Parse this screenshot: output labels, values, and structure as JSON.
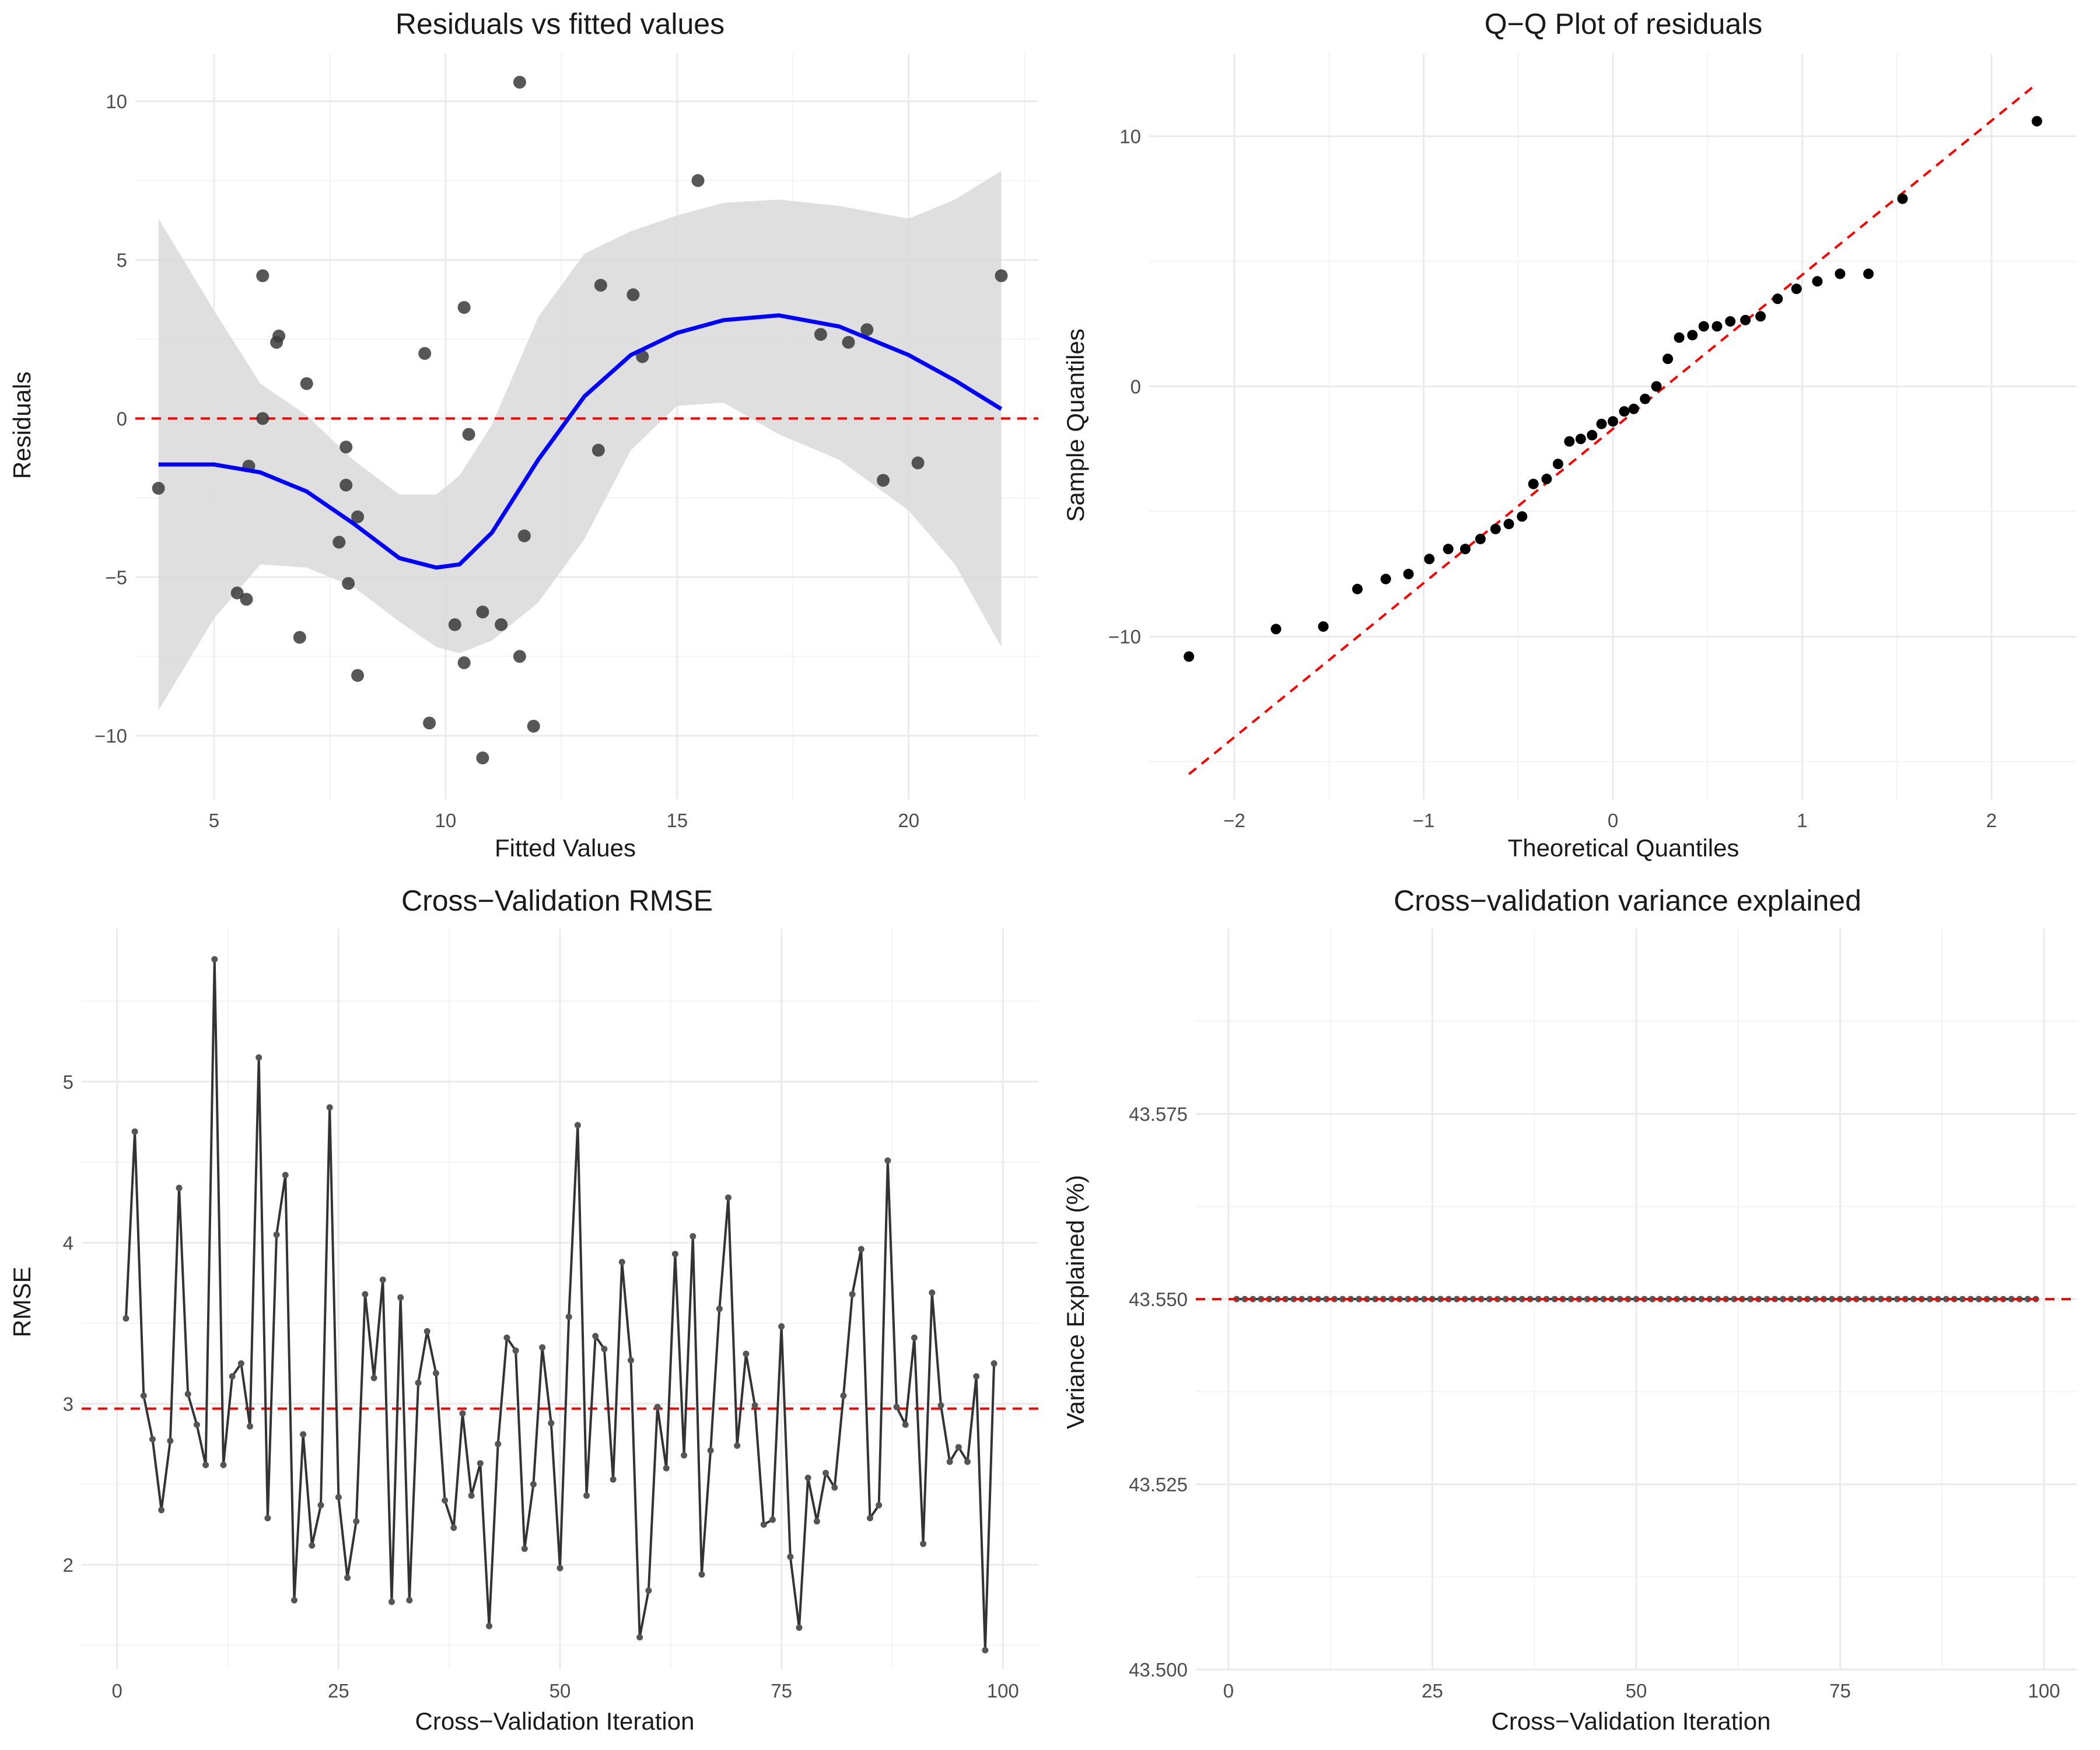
{
  "chart_data": [
    {
      "id": "residuals",
      "type": "scatter",
      "title": "Residuals vs fitted values",
      "xlabel": "Fitted Values",
      "ylabel": "Residuals",
      "xlim": [
        3.3,
        22.8
      ],
      "ylim": [
        -12,
        11.5
      ],
      "xticks": [
        5,
        10,
        15,
        20
      ],
      "yticks": [
        -10,
        -5,
        0,
        5,
        10
      ],
      "xtick_labels": [
        "5",
        "10",
        "15",
        "20"
      ],
      "ytick_labels": [
        "−10",
        "−5",
        "0",
        "5",
        "10"
      ],
      "grid": true,
      "reference_line": {
        "y": 0,
        "color": "#ff0000",
        "style": "dashed"
      },
      "smooth_color": "#0000ff",
      "band_color": "#d9d9d9",
      "point_color": "#3a3a3a",
      "points": [
        {
          "x": 3.8,
          "y": -2.2
        },
        {
          "x": 5.5,
          "y": -5.5
        },
        {
          "x": 5.7,
          "y": -5.7
        },
        {
          "x": 5.75,
          "y": -1.5
        },
        {
          "x": 6.05,
          "y": 4.5
        },
        {
          "x": 6.05,
          "y": 0.0
        },
        {
          "x": 6.35,
          "y": 2.4
        },
        {
          "x": 6.4,
          "y": 2.6
        },
        {
          "x": 6.85,
          "y": -6.9
        },
        {
          "x": 7.0,
          "y": 1.1
        },
        {
          "x": 7.7,
          "y": -3.9
        },
        {
          "x": 7.85,
          "y": -0.9
        },
        {
          "x": 7.85,
          "y": -2.1
        },
        {
          "x": 7.9,
          "y": -5.2
        },
        {
          "x": 8.1,
          "y": -3.1
        },
        {
          "x": 8.1,
          "y": -8.1
        },
        {
          "x": 9.55,
          "y": 2.05
        },
        {
          "x": 9.65,
          "y": -9.6
        },
        {
          "x": 10.2,
          "y": -6.5
        },
        {
          "x": 10.4,
          "y": 3.5
        },
        {
          "x": 10.4,
          "y": -7.7
        },
        {
          "x": 10.5,
          "y": -0.5
        },
        {
          "x": 10.8,
          "y": -6.1
        },
        {
          "x": 10.8,
          "y": -10.7
        },
        {
          "x": 11.2,
          "y": -6.5
        },
        {
          "x": 11.6,
          "y": -7.5
        },
        {
          "x": 11.6,
          "y": 10.6
        },
        {
          "x": 11.7,
          "y": -3.7
        },
        {
          "x": 11.9,
          "y": -9.7
        },
        {
          "x": 13.3,
          "y": -1.0
        },
        {
          "x": 13.35,
          "y": 4.2
        },
        {
          "x": 14.05,
          "y": 3.9
        },
        {
          "x": 14.25,
          "y": 1.95
        },
        {
          "x": 15.45,
          "y": 7.5
        },
        {
          "x": 18.1,
          "y": 2.65
        },
        {
          "x": 18.7,
          "y": 2.4
        },
        {
          "x": 19.1,
          "y": 2.8
        },
        {
          "x": 19.45,
          "y": -1.95
        },
        {
          "x": 20.2,
          "y": -1.4
        },
        {
          "x": 22.0,
          "y": 4.5
        }
      ],
      "smooth": {
        "x": [
          3.8,
          5.0,
          6.0,
          7.0,
          8.0,
          9.0,
          9.8,
          10.3,
          11.0,
          12.0,
          13.0,
          14.0,
          15.0,
          16.0,
          17.2,
          18.5,
          20.0,
          21.0,
          22.0
        ],
        "y": [
          -1.45,
          -1.45,
          -1.7,
          -2.3,
          -3.3,
          -4.4,
          -4.7,
          -4.6,
          -3.6,
          -1.3,
          0.7,
          2.0,
          2.7,
          3.1,
          3.25,
          2.9,
          2.0,
          1.2,
          0.3
        ],
        "lower": [
          -9.2,
          -6.3,
          -4.6,
          -4.7,
          -5.3,
          -6.4,
          -7.2,
          -7.4,
          -7.0,
          -5.8,
          -3.8,
          -1.0,
          0.4,
          0.5,
          -0.5,
          -1.3,
          -2.9,
          -4.6,
          -7.2
        ],
        "upper": [
          6.3,
          3.4,
          1.1,
          0.1,
          -1.3,
          -2.4,
          -2.4,
          -1.8,
          -0.2,
          3.2,
          5.2,
          5.9,
          6.4,
          6.8,
          6.9,
          6.7,
          6.3,
          6.9,
          7.8
        ]
      }
    },
    {
      "id": "qq",
      "type": "scatter",
      "title": "Q−Q Plot of residuals",
      "xlabel": "Theoretical Quantiles",
      "ylabel": "Sample Quantiles",
      "xlim": [
        -2.45,
        2.45
      ],
      "ylim": [
        -16.5,
        13.3
      ],
      "xticks": [
        -2,
        -1,
        0,
        1,
        2
      ],
      "yticks": [
        -10,
        0,
        10
      ],
      "xtick_labels": [
        "−2",
        "−1",
        "0",
        "1",
        "2"
      ],
      "ytick_labels": [
        "−10",
        "0",
        "10"
      ],
      "grid": true,
      "reference_line": {
        "x1": -2.24,
        "y1": -15.5,
        "x2": 2.24,
        "y2": 12.1,
        "color": "#ff0000",
        "style": "dashed"
      },
      "point_color": "#000000",
      "points": [
        {
          "x": -2.24,
          "y": -10.8
        },
        {
          "x": -1.78,
          "y": -9.7
        },
        {
          "x": -1.53,
          "y": -9.6
        },
        {
          "x": -1.35,
          "y": -8.1
        },
        {
          "x": -1.2,
          "y": -7.7
        },
        {
          "x": -1.08,
          "y": -7.5
        },
        {
          "x": -0.97,
          "y": -6.9
        },
        {
          "x": -0.87,
          "y": -6.5
        },
        {
          "x": -0.78,
          "y": -6.5
        },
        {
          "x": -0.7,
          "y": -6.1
        },
        {
          "x": -0.62,
          "y": -5.7
        },
        {
          "x": -0.55,
          "y": -5.5
        },
        {
          "x": -0.48,
          "y": -5.2
        },
        {
          "x": -0.42,
          "y": -3.9
        },
        {
          "x": -0.35,
          "y": -3.7
        },
        {
          "x": -0.29,
          "y": -3.1
        },
        {
          "x": -0.23,
          "y": -2.2
        },
        {
          "x": -0.17,
          "y": -2.1
        },
        {
          "x": -0.11,
          "y": -1.95
        },
        {
          "x": -0.06,
          "y": -1.5
        },
        {
          "x": 0.0,
          "y": -1.4
        },
        {
          "x": 0.06,
          "y": -1.0
        },
        {
          "x": 0.11,
          "y": -0.9
        },
        {
          "x": 0.17,
          "y": -0.5
        },
        {
          "x": 0.23,
          "y": 0.0
        },
        {
          "x": 0.29,
          "y": 1.1
        },
        {
          "x": 0.35,
          "y": 1.95
        },
        {
          "x": 0.42,
          "y": 2.05
        },
        {
          "x": 0.48,
          "y": 2.4
        },
        {
          "x": 0.55,
          "y": 2.4
        },
        {
          "x": 0.62,
          "y": 2.6
        },
        {
          "x": 0.7,
          "y": 2.65
        },
        {
          "x": 0.78,
          "y": 2.8
        },
        {
          "x": 0.87,
          "y": 3.5
        },
        {
          "x": 0.97,
          "y": 3.9
        },
        {
          "x": 1.08,
          "y": 4.2
        },
        {
          "x": 1.2,
          "y": 4.5
        },
        {
          "x": 1.35,
          "y": 4.5
        },
        {
          "x": 1.53,
          "y": 7.5
        },
        {
          "x": 2.24,
          "y": 10.6
        }
      ]
    },
    {
      "id": "rmse",
      "type": "line",
      "title": "Cross−Validation RMSE",
      "xlabel": "Cross−Validation Iteration",
      "ylabel": "RMSE",
      "xlim": [
        -4,
        104
      ],
      "ylim": [
        1.35,
        5.95
      ],
      "xticks": [
        0,
        25,
        50,
        75,
        100
      ],
      "yticks": [
        2,
        3,
        4,
        5
      ],
      "xtick_labels": [
        "0",
        "25",
        "50",
        "75",
        "100"
      ],
      "ytick_labels": [
        "2",
        "3",
        "4",
        "5"
      ],
      "grid": true,
      "reference_line": {
        "y": 2.97,
        "color": "#ff0000",
        "style": "dashed"
      },
      "line_color": "#333333",
      "x": [
        1,
        2,
        3,
        4,
        5,
        6,
        7,
        8,
        9,
        10,
        11,
        12,
        13,
        14,
        15,
        16,
        17,
        18,
        19,
        20,
        21,
        22,
        23,
        24,
        25,
        26,
        27,
        28,
        29,
        30,
        31,
        32,
        33,
        34,
        35,
        36,
        37,
        38,
        39,
        40,
        41,
        42,
        43,
        44,
        45,
        46,
        47,
        48,
        49,
        50,
        51,
        52,
        53,
        54,
        55,
        56,
        57,
        58,
        59,
        60,
        61,
        62,
        63,
        64,
        65,
        66,
        67,
        68,
        69,
        70,
        71,
        72,
        73,
        74,
        75,
        76,
        77,
        78,
        79,
        80,
        81,
        82,
        83,
        84,
        85,
        86,
        87,
        88,
        89,
        90,
        91,
        92,
        93,
        94,
        95,
        96,
        97,
        98,
        99
      ],
      "values": [
        3.53,
        4.69,
        3.05,
        2.78,
        2.34,
        2.77,
        4.34,
        3.06,
        2.87,
        2.62,
        5.76,
        2.62,
        3.17,
        3.25,
        2.86,
        5.15,
        2.29,
        4.05,
        4.42,
        1.78,
        2.81,
        2.12,
        2.37,
        4.84,
        2.42,
        1.92,
        2.27,
        3.68,
        3.16,
        3.77,
        1.77,
        3.66,
        1.78,
        3.13,
        3.45,
        3.19,
        2.4,
        2.23,
        2.94,
        2.43,
        2.63,
        1.62,
        2.75,
        3.41,
        3.33,
        2.1,
        2.5,
        3.35,
        2.88,
        1.98,
        3.54,
        4.73,
        2.43,
        3.42,
        3.34,
        2.53,
        3.88,
        3.27,
        1.55,
        1.84,
        2.98,
        2.6,
        3.93,
        2.68,
        4.04,
        1.94,
        2.71,
        3.59,
        4.28,
        2.74,
        3.31,
        2.99,
        2.25,
        2.28,
        3.48,
        2.05,
        1.61,
        2.54,
        2.27,
        2.57,
        2.48,
        3.05,
        3.68,
        3.96,
        2.29,
        2.37,
        4.51,
        2.98,
        2.87,
        3.41,
        2.13,
        3.69,
        2.99,
        2.64,
        2.73,
        2.64,
        3.17,
        1.47,
        3.25
      ]
    },
    {
      "id": "variance",
      "type": "line",
      "title": "Cross−validation variance explained",
      "xlabel": "Cross−Validation Iteration",
      "ylabel": "Variance Explained (%)",
      "xlim": [
        -4,
        104
      ],
      "ylim": [
        43.5,
        43.6
      ],
      "xticks": [
        0,
        25,
        50,
        75,
        100
      ],
      "yticks": [
        43.5,
        43.525,
        43.55,
        43.575
      ],
      "xtick_labels": [
        "0",
        "25",
        "50",
        "75",
        "100"
      ],
      "ytick_labels": [
        "43.500",
        "43.525",
        "43.550",
        "43.575"
      ],
      "grid": true,
      "reference_line": {
        "y": 43.55,
        "color": "#ff0000",
        "style": "dashed"
      },
      "line_color": "#333333",
      "x_start": 1,
      "x_end": 99,
      "constant_value": 43.55
    }
  ]
}
